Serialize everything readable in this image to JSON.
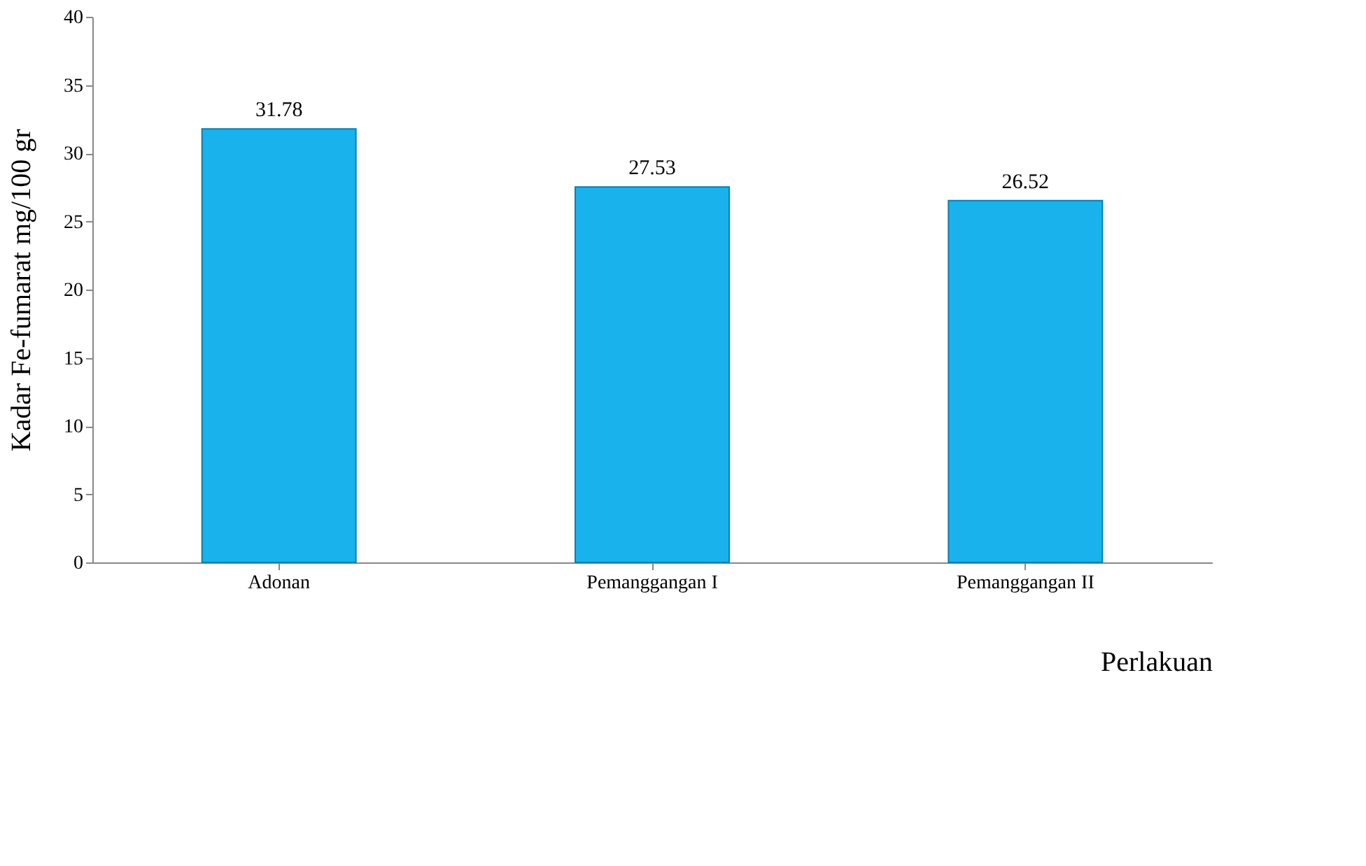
{
  "chart_data": {
    "type": "bar",
    "xlabel": "Perlakuan",
    "ylabel": "Kadar Fe-fumarat mg/100 gr",
    "categories": [
      "Adonan",
      "Pemanggangan I",
      "Pemanggangan II"
    ],
    "values": [
      31.78,
      27.53,
      26.52
    ],
    "color": "#1ab2ec",
    "ylim": [
      0,
      40
    ],
    "yticks": [
      0,
      5,
      10,
      15,
      20,
      25,
      30,
      35,
      40
    ],
    "grid": false,
    "data_labels": true
  }
}
